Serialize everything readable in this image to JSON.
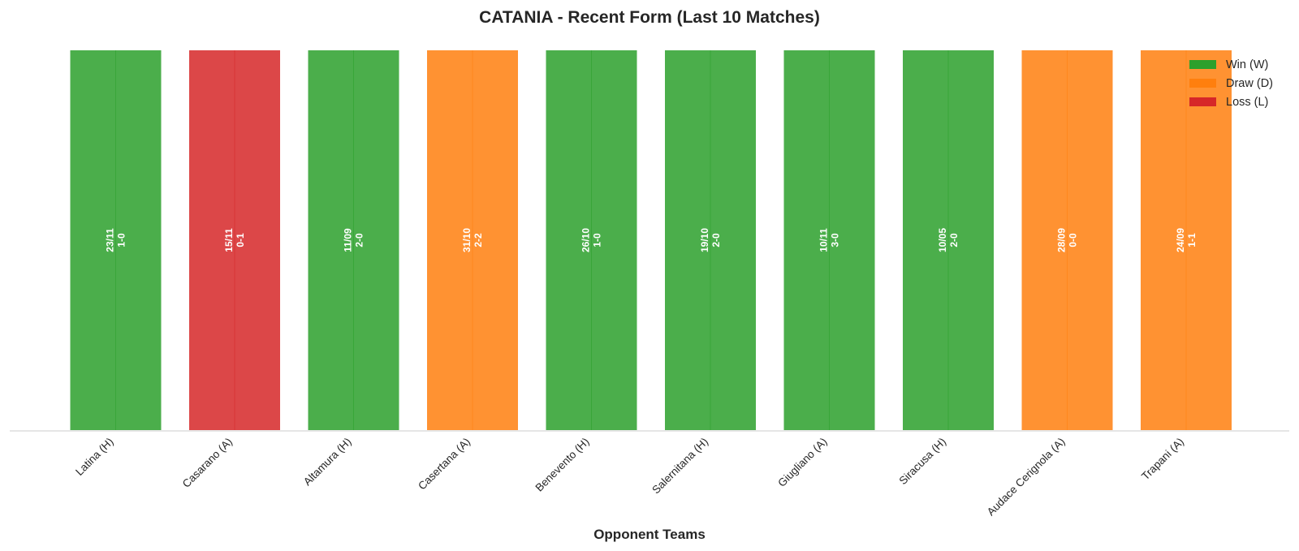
{
  "chart_data": {
    "type": "bar",
    "title": "CATANIA - Recent Form (Last 10 Matches)",
    "xlabel": "Opponent Teams",
    "ylabel": "",
    "ylim": [
      0,
      1
    ],
    "grid": false,
    "legend_placement": "top-right",
    "legend": [
      {
        "key": "W",
        "label": "Win (W)",
        "color": "#2ca02c"
      },
      {
        "key": "D",
        "label": "Draw (D)",
        "color": "#ff7f0e"
      },
      {
        "key": "L",
        "label": "Loss (L)",
        "color": "#d62728"
      }
    ],
    "categories": [
      "Latina (H)",
      "Casarano (A)",
      "Altamura (H)",
      "Casertana (A)",
      "Benevento (H)",
      "Salernitana (H)",
      "Giugliano (A)",
      "Siracusa (H)",
      "Audace Cerignola (A)",
      "Trapani (A)"
    ],
    "values": [
      1,
      1,
      1,
      1,
      1,
      1,
      1,
      1,
      1,
      1
    ],
    "results": [
      "W",
      "L",
      "W",
      "D",
      "W",
      "W",
      "W",
      "W",
      "D",
      "D"
    ],
    "dates": [
      "23/11",
      "15/11",
      "11/09",
      "31/10",
      "26/10",
      "19/10",
      "10/11",
      "10/05",
      "28/09",
      "24/09"
    ],
    "scores": [
      "1-0",
      "0-1",
      "2-0",
      "2-2",
      "1-0",
      "2-0",
      "3-0",
      "2-0",
      "0-0",
      "1-1"
    ]
  }
}
